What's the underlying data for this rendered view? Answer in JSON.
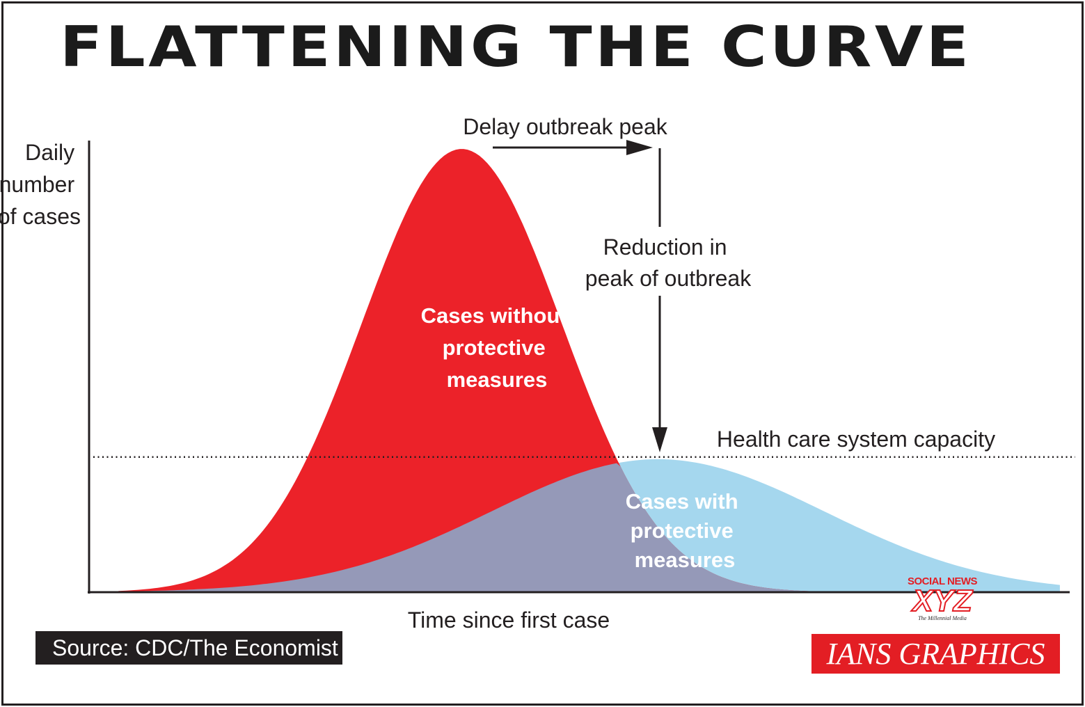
{
  "title": "FLATTENING THE CURVE",
  "chart_data": {
    "type": "area",
    "ylabel": [
      "Daily",
      "number",
      "of cases"
    ],
    "xlabel": "Time since first case",
    "series": [
      {
        "name": "Cases without protective measures",
        "label_lines": [
          "Cases without",
          "protective",
          "measures"
        ],
        "color": "#ec2229",
        "shape": "gaussian",
        "peak_time": 0.38,
        "peak_cases": 1.0,
        "spread": 0.102,
        "start": 0.03,
        "end": 0.99
      },
      {
        "name": "Cases with protective measures",
        "label_lines": [
          "Cases with",
          "protective",
          "measures"
        ],
        "color": "#a5d7ee",
        "overlap_color": "#9599b8",
        "shape": "gaussian",
        "peak_time": 0.58,
        "peak_cases": 0.3,
        "spread": 0.17,
        "start": 0.03,
        "end": 0.99
      }
    ],
    "capacity_line": {
      "label": "Health care system capacity",
      "value": 0.305,
      "style": "dotted"
    },
    "annotations": {
      "delay": "Delay outbreak peak",
      "reduction": [
        "Reduction in",
        "peak of outbreak"
      ]
    },
    "xlim": [
      0,
      1
    ],
    "ylim": [
      0,
      1.08
    ],
    "grid": false
  },
  "source": "Source: CDC/The Economist",
  "credit": "IANS GRAPHICS",
  "logo": {
    "top": "SOCIAL NEWS",
    "main": "XYZ",
    "tagline": "The Millennial Media"
  }
}
